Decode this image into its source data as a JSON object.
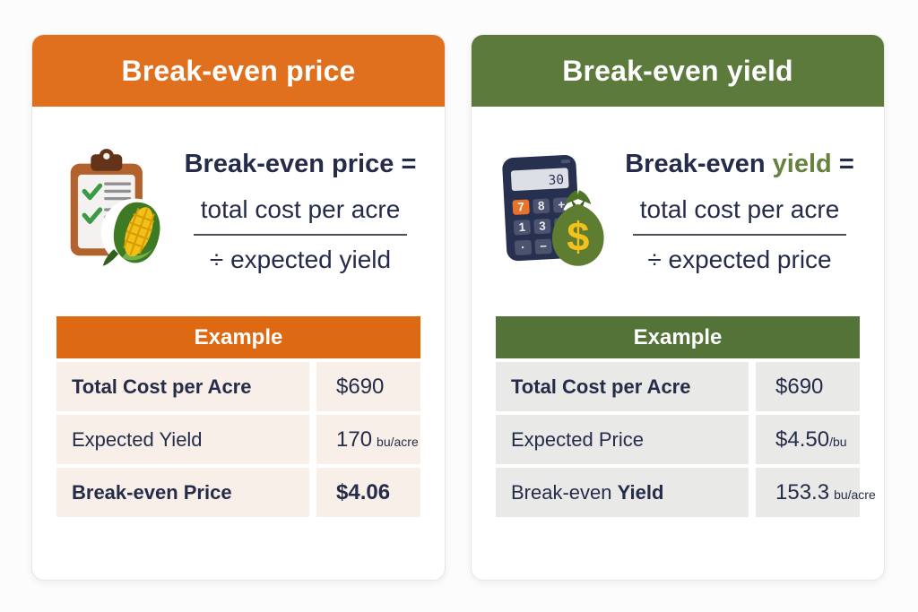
{
  "text_color": "#242C4A",
  "cards": [
    {
      "name": "break-even-price",
      "title": "Break-even price",
      "accent": "#E1701E",
      "table_accent": "#DD6A12",
      "row_bg": "#F9EFE9",
      "formula": {
        "icon": "clipboard-corn-icon",
        "lhs_prefix": "Break-even",
        "lhs_word": "price",
        "word_color": "#242C4A",
        "equals": "=",
        "numerator": "total cost per acre",
        "denominator": "÷ expected yield"
      },
      "table": {
        "header": "Example",
        "rows": [
          {
            "label_parts": [
              {
                "text": "Total Cost per Acre",
                "bold": true
              }
            ],
            "value": "$690",
            "unit": "",
            "unit_gap": false,
            "value_bold": false
          },
          {
            "label_parts": [
              {
                "text": "Expected Yield",
                "bold": false
              }
            ],
            "value": "170",
            "unit": "bu/acre",
            "unit_gap": true,
            "value_bold": false
          },
          {
            "label_parts": [
              {
                "text": "Break-even Price",
                "bold": true
              }
            ],
            "value": "$4.06",
            "unit": "",
            "unit_gap": false,
            "value_bold": true
          }
        ]
      }
    },
    {
      "name": "break-even-yield",
      "title": "Break-even yield",
      "accent": "#5B7A3C",
      "table_accent": "#537338",
      "row_bg": "#E9E9E7",
      "formula": {
        "icon": "calculator-moneybag-icon",
        "lhs_prefix": "Break-even",
        "lhs_word": "yield",
        "word_color": "#66823E",
        "equals": "=",
        "numerator": "total cost per acre",
        "denominator": "÷ expected price"
      },
      "table": {
        "header": "Example",
        "rows": [
          {
            "label_parts": [
              {
                "text": "Total Cost per Acre",
                "bold": true
              }
            ],
            "value": "$690",
            "unit": "",
            "unit_gap": false,
            "value_bold": false
          },
          {
            "label_parts": [
              {
                "text": "Expected Price",
                "bold": false
              }
            ],
            "value": "$4.50",
            "unit": "/bu",
            "unit_gap": false,
            "value_bold": false
          },
          {
            "label_parts": [
              {
                "text": "Break-even ",
                "bold": false
              },
              {
                "text": "Yield",
                "bold": true
              }
            ],
            "value": "153.3",
            "unit": "bu/acre",
            "unit_gap": true,
            "value_bold": false
          }
        ]
      }
    }
  ]
}
